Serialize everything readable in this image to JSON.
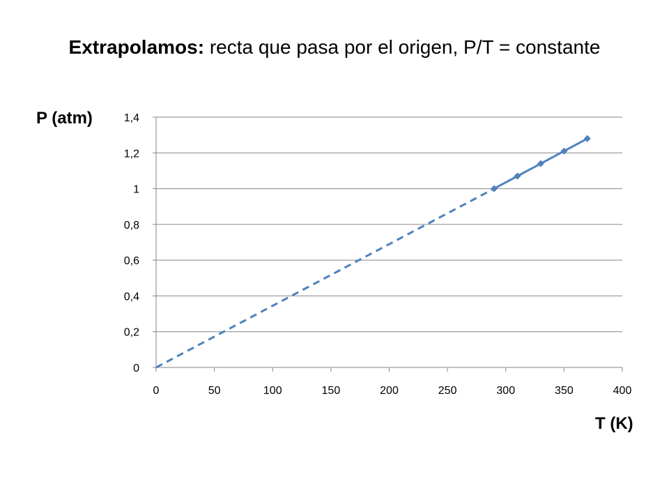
{
  "slide": {
    "title_bold": "Extrapolamos:",
    "title_rest": " recta que pasa por el origen, P/T = constante"
  },
  "chart_data": {
    "type": "line",
    "xlabel": "T (K)",
    "ylabel": "P (atm)",
    "xlim": [
      0,
      400
    ],
    "ylim": [
      0,
      1.4
    ],
    "x_ticks": [
      "0",
      "50",
      "100",
      "150",
      "200",
      "250",
      "300",
      "350",
      "400"
    ],
    "y_ticks": [
      "0",
      "0,2",
      "0,4",
      "0,6",
      "0,8",
      "1",
      "1,2",
      "1,4"
    ],
    "grid": "horizontal",
    "series": [
      {
        "style": "solid-with-markers",
        "marker": "diamond",
        "color": "#4F81BD",
        "x": [
          290,
          310,
          330,
          350,
          370
        ],
        "y": [
          1.0,
          1.07,
          1.14,
          1.21,
          1.28
        ]
      },
      {
        "style": "dashed-extrapolation",
        "color": "#4F81BD",
        "x": [
          0,
          290
        ],
        "y": [
          0,
          1.0
        ]
      }
    ]
  }
}
